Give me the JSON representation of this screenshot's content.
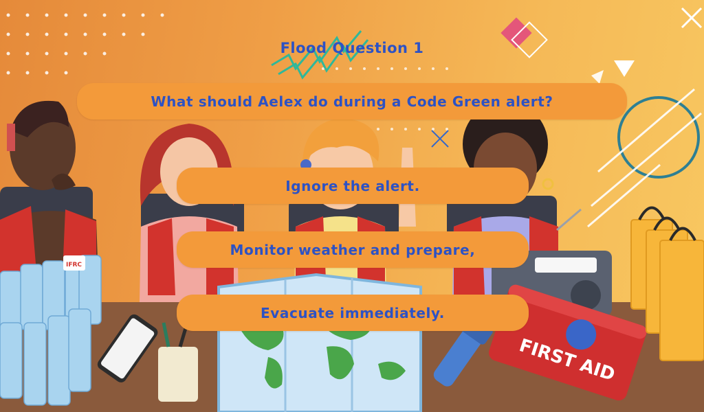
{
  "quiz": {
    "title": "Flood Question 1",
    "question": "What should Aelex do during a Code Green alert?",
    "answers": [
      "Ignore the alert.",
      "Monitor weather and prepare,",
      "Evacuate immediately."
    ]
  },
  "illustration": {
    "water_bottle_badge": "IFRC",
    "first_aid_label": "FIRST AID"
  },
  "colors": {
    "answer_fill": "#f39a3a",
    "text_blue": "#2d52c4",
    "desk": "#8a5a3c"
  }
}
